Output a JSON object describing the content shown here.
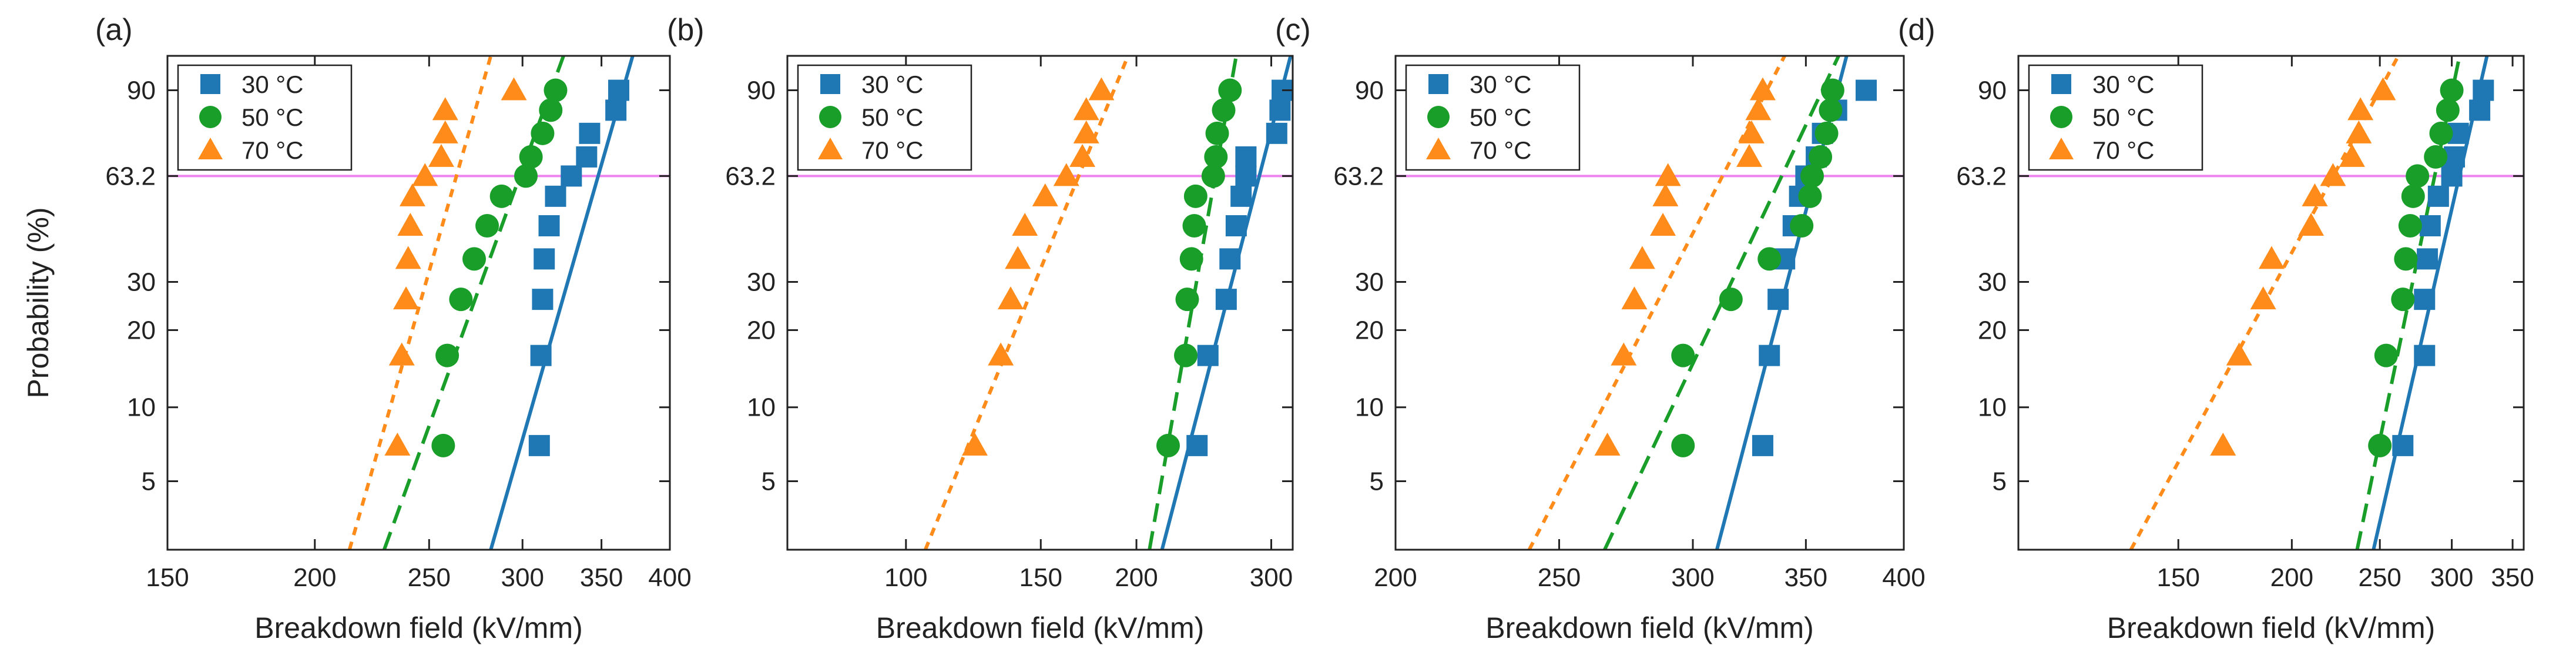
{
  "figure": {
    "ylabel": "Probability (%)",
    "xlabel": "Breakdown field (kV/mm)"
  },
  "colors": {
    "30C": "#1f77b4",
    "50C": "#1a9e2a",
    "70C": "#ff8c1a",
    "ref_line": "#ee82ee",
    "axis": "#222222"
  },
  "chart_data": [
    {
      "type": "scatter",
      "panel_label": "(a)",
      "xlabel": "Breakdown field (kV/mm)",
      "ylabel": "Probability (%)",
      "xscale": "log",
      "yscale": "weibull",
      "xlim": [
        150,
        400
      ],
      "ylim": [
        2.6,
        96
      ],
      "xticks": [
        150,
        200,
        250,
        300,
        350,
        400
      ],
      "yticks": [
        5,
        10,
        20,
        30,
        63.2,
        90
      ],
      "yticklabels": [
        "5",
        "10",
        "20",
        "30",
        "63.2",
        "90"
      ],
      "reference_line": 63.2,
      "legend": "top-left",
      "series": [
        {
          "name": "30 °C",
          "marker": "square",
          "color": "#1f77b4",
          "line": "solid",
          "x": [
            310,
            311,
            312,
            313,
            316,
            320,
            330,
            340,
            342,
            360,
            362
          ],
          "y": [
            7,
            16,
            26,
            36,
            46,
            56,
            63.2,
            70,
            78,
            85,
            90
          ],
          "fit": {
            "x": [
              282,
              372
            ],
            "y": [
              2.6,
              96
            ]
          }
        },
        {
          "name": "50 °C",
          "marker": "circle",
          "color": "#1a9e2a",
          "line": "dashed",
          "x": [
            257,
            259,
            266,
            273,
            280,
            288,
            302,
            305,
            312,
            317,
            320
          ],
          "y": [
            7,
            16,
            26,
            36,
            46,
            56,
            63.2,
            70,
            78,
            85,
            90
          ],
          "fit": {
            "x": [
              229,
              325
            ],
            "y": [
              2.6,
              96
            ]
          }
        },
        {
          "name": "70 °C",
          "marker": "triangle",
          "color": "#ff8c1a",
          "line": "dotted",
          "x": [
            235,
            237,
            239,
            240,
            241,
            242,
            248,
            256,
            258,
            258,
            295
          ],
          "y": [
            7,
            16,
            26,
            36,
            46,
            56,
            63.2,
            70,
            78,
            85,
            90
          ],
          "fit": {
            "x": [
              214,
              282
            ],
            "y": [
              2.6,
              96
            ]
          }
        }
      ]
    },
    {
      "type": "scatter",
      "panel_label": "(b)",
      "xlabel": "Breakdown field (kV/mm)",
      "ylabel": "Probability (%)",
      "xscale": "log",
      "yscale": "weibull",
      "xlim": [
        70,
        320
      ],
      "ylim": [
        2.6,
        96
      ],
      "xticks": [
        100,
        150,
        200,
        300
      ],
      "yticks": [
        5,
        10,
        20,
        30,
        63.2,
        90
      ],
      "yticklabels": [
        "5",
        "10",
        "20",
        "30",
        "63.2",
        "90"
      ],
      "reference_line": 63.2,
      "legend": "top-left",
      "series": [
        {
          "name": "30 °C",
          "marker": "square",
          "color": "#1f77b4",
          "line": "solid",
          "x": [
            240,
            248,
            262,
            265,
            270,
            274,
            278,
            278,
            305,
            308,
            310
          ],
          "y": [
            7,
            16,
            26,
            36,
            46,
            56,
            63.2,
            70,
            78,
            85,
            90
          ],
          "fit": {
            "x": [
              216,
              318
            ],
            "y": [
              2.6,
              96
            ]
          }
        },
        {
          "name": "50 °C",
          "marker": "circle",
          "color": "#1a9e2a",
          "line": "dashed",
          "x": [
            220,
            232,
            233,
            236,
            238,
            239,
            252,
            254,
            255,
            260,
            265
          ],
          "y": [
            7,
            16,
            26,
            36,
            46,
            56,
            63.2,
            70,
            78,
            85,
            90
          ],
          "fit": {
            "x": [
              208,
              270
            ],
            "y": [
              2.6,
              96
            ]
          }
        },
        {
          "name": "70 °C",
          "marker": "triangle",
          "color": "#ff8c1a",
          "line": "dotted",
          "x": [
            123,
            133,
            137,
            140,
            143,
            152,
            162,
            170,
            172,
            172,
            180
          ],
          "y": [
            7,
            16,
            26,
            36,
            46,
            56,
            63.2,
            70,
            78,
            85,
            90
          ],
          "fit": {
            "x": [
              106,
              195
            ],
            "y": [
              2.6,
              96
            ]
          }
        }
      ]
    },
    {
      "type": "scatter",
      "panel_label": "(c)",
      "xlabel": "Breakdown field (kV/mm)",
      "ylabel": "Probability (%)",
      "xscale": "log",
      "yscale": "weibull",
      "xlim": [
        200,
        400
      ],
      "ylim": [
        2.6,
        96
      ],
      "xticks": [
        200,
        250,
        300,
        350,
        400
      ],
      "yticks": [
        5,
        10,
        20,
        30,
        63.2,
        90
      ],
      "yticklabels": [
        "5",
        "10",
        "20",
        "30",
        "63.2",
        "90"
      ],
      "reference_line": 63.2,
      "legend": "top-left",
      "series": [
        {
          "name": "30 °C",
          "marker": "square",
          "color": "#1f77b4",
          "line": "solid",
          "x": [
            330,
            333,
            337,
            340,
            344,
            347,
            350,
            355,
            358,
            365,
            380
          ],
          "y": [
            7,
            16,
            26,
            36,
            46,
            56,
            63.2,
            70,
            78,
            85,
            90
          ],
          "fit": {
            "x": [
              310,
              370
            ],
            "y": [
              2.6,
              96
            ]
          }
        },
        {
          "name": "50 °C",
          "marker": "circle",
          "color": "#1a9e2a",
          "line": "dashed",
          "x": [
            296,
            296,
            316,
            333,
            348,
            352,
            353,
            357,
            360,
            362,
            363
          ],
          "y": [
            7,
            16,
            26,
            36,
            46,
            56,
            63.2,
            70,
            78,
            85,
            90
          ],
          "fit": {
            "x": [
              266,
              366
            ],
            "y": [
              2.6,
              96
            ]
          }
        },
        {
          "name": "70 °C",
          "marker": "triangle",
          "color": "#ff8c1a",
          "line": "dotted",
          "x": [
            267,
            273,
            277,
            280,
            288,
            289,
            290,
            324,
            325,
            328,
            330
          ],
          "y": [
            7,
            16,
            26,
            36,
            46,
            56,
            63.2,
            70,
            78,
            85,
            90
          ],
          "fit": {
            "x": [
              240,
              340
            ],
            "y": [
              2.6,
              96
            ]
          }
        }
      ]
    },
    {
      "type": "scatter",
      "panel_label": "(d)",
      "xlabel": "Breakdown field (kV/mm)",
      "ylabel": "Probability (%)",
      "xscale": "log",
      "yscale": "weibull",
      "xlim": [
        100,
        360
      ],
      "ylim": [
        2.6,
        96
      ],
      "xticks": [
        150,
        200,
        250,
        300,
        350
      ],
      "yticks": [
        5,
        10,
        20,
        30,
        63.2,
        90
      ],
      "yticklabels": [
        "5",
        "10",
        "20",
        "30",
        "63.2",
        "90"
      ],
      "reference_line": 63.2,
      "legend": "top-left",
      "series": [
        {
          "name": "30 °C",
          "marker": "square",
          "color": "#1f77b4",
          "line": "solid",
          "x": [
            265,
            280,
            280,
            282,
            284,
            290,
            300,
            302,
            305,
            322,
            325
          ],
          "y": [
            7,
            16,
            26,
            36,
            46,
            56,
            63.2,
            70,
            78,
            85,
            90
          ],
          "fit": {
            "x": [
              246,
              328
            ],
            "y": [
              2.6,
              96
            ]
          }
        },
        {
          "name": "50 °C",
          "marker": "circle",
          "color": "#1a9e2a",
          "line": "dashed",
          "x": [
            250,
            254,
            265,
            267,
            270,
            272,
            275,
            288,
            292,
            297,
            300
          ],
          "y": [
            7,
            16,
            26,
            36,
            46,
            56,
            63.2,
            70,
            78,
            85,
            90
          ],
          "fit": {
            "x": [
              236,
              306
            ],
            "y": [
              2.6,
              96
            ]
          }
        },
        {
          "name": "70 °C",
          "marker": "triangle",
          "color": "#ff8c1a",
          "line": "dotted",
          "x": [
            168,
            175,
            186,
            190,
            210,
            212,
            222,
            233,
            237,
            238,
            252
          ],
          "y": [
            7,
            16,
            26,
            36,
            46,
            56,
            63.2,
            70,
            78,
            85,
            90
          ],
          "fit": {
            "x": [
              133,
              262
            ],
            "y": [
              2.6,
              96
            ]
          }
        }
      ]
    }
  ]
}
